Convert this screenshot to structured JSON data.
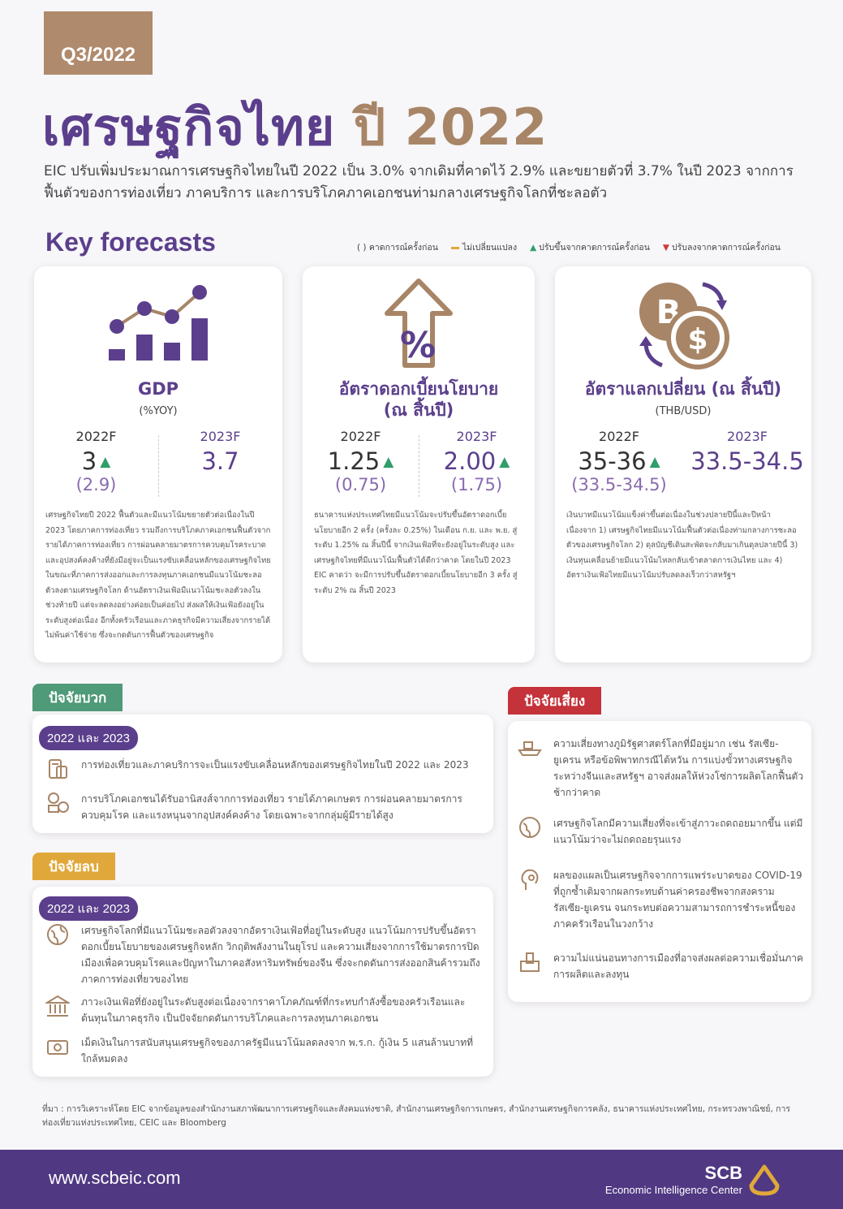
{
  "header": {
    "quarter": "Q3/2022",
    "title_main": "เศรษฐกิจไทย",
    "title_year": "ปี 2022",
    "subtitle": "EIC ปรับเพิ่มประมาณการเศรษฐกิจไทยในปี 2022 เป็น 3.0% จากเดิมที่คาดไว้ 2.9% และขยายตัวที่ 3.7% ในปี 2023 จากการฟื้นตัวของการท่องเที่ยว ภาคบริการ และการบริโภคภาคเอกชนท่ามกลางเศรษฐกิจโลกที่ชะลอตัว"
  },
  "key_forecasts": {
    "title": "Key forecasts",
    "legend": {
      "prev": "( ) คาดการณ์ครั้งก่อน",
      "unchanged": "ไม่เปลี่ยนแปลง",
      "up": "ปรับขึ้นจากคาดการณ์ครั้งก่อน",
      "down": "ปรับลงจากคาดการณ์ครั้งก่อน",
      "colors": {
        "unchanged": "#e0a83a",
        "up": "#2f9e6a",
        "down": "#d0383a"
      }
    },
    "cards": [
      {
        "icon": "bar-chart-icon",
        "title": "GDP",
        "unit": "(%YOY)",
        "y1": "2022F",
        "v1": "3",
        "p1": "(2.9)",
        "t1": "▲",
        "y2": "2023F",
        "v2": "3.7",
        "p2": "",
        "t2": "",
        "desc": "เศรษฐกิจไทยปี 2022 ฟื้นตัวและมีแนวโน้มขยายตัวต่อเนื่องในปี 2023 โดยภาคการท่องเที่ยว รวมถึงการบริโภคภาคเอกชนฟื้นตัวจากรายได้ภาคการท่องเที่ยว การผ่อนคลายมาตรการควบคุมโรคระบาด และอุปสงค์คงค้างที่ยังมีอยู่จะเป็นแรงขับเคลื่อนหลักของเศรษฐกิจไทย ในขณะที่ภาคการส่งออกและการลงทุนภาคเอกชนมีแนวโน้มชะลอตัวลงตามเศรษฐกิจโลก ด้านอัตราเงินเฟ้อมีแนวโน้มชะลอตัวลงในช่วงท้ายปี แต่จะลดลงอย่างค่อยเป็นค่อยไป ส่งผลให้เงินเฟ้อยังอยู่ในระดับสูงต่อเนื่อง อีกทั้งครัวเรือนและภาคธุรกิจมีความเสี่ยงจากรายได้ไม่พ้นค่าใช้จ่าย ซึ่งจะกดดันการฟื้นตัวของเศรษฐกิจ"
      },
      {
        "icon": "interest-rate-up-icon",
        "title": "อัตราดอกเบี้ยนโยบาย",
        "unit": "(ณ สิ้นปี)",
        "y1": "2022F",
        "v1": "1.25",
        "p1": "(0.75)",
        "t1": "▲",
        "y2": "2023F",
        "v2": "2.00",
        "p2": "(1.75)",
        "t2": "▲",
        "desc": "ธนาคารแห่งประเทศไทยมีแนวโน้มจะปรับขึ้นอัตราดอกเบี้ยนโยบายอีก 2 ครั้ง (ครั้งละ 0.25%) ในเดือน ก.ย. และ พ.ย. สู่ระดับ 1.25% ณ สิ้นปีนี้ จากเงินเฟ้อที่จะยังอยู่ในระดับสูง และเศรษฐกิจไทยที่มีแนวโน้มฟื้นตัวได้ดีกว่าคาด โดยในปี 2023 EIC คาดว่า จะมีการปรับขึ้นอัตราดอกเบี้ยนโยบายอีก 3 ครั้ง สู่ระดับ 2% ณ สิ้นปี 2023"
      },
      {
        "icon": "currency-exchange-icon",
        "title": "อัตราแลกเปลี่ยน (ณ สิ้นปี)",
        "unit": "(THB/USD)",
        "y1": "2022F",
        "v1": "35-36",
        "p1": "(33.5-34.5)",
        "t1": "▲",
        "y2": "2023F",
        "v2": "33.5-34.5",
        "p2": "",
        "t2": "",
        "desc": "เงินบาทมีแนวโน้มแข็งค่าขึ้นต่อเนื่องในช่วงปลายปีนี้และปีหน้าเนื่องจาก 1) เศรษฐกิจไทยมีแนวโน้มฟื้นตัวต่อเนื่องท่ามกลางการชะลอตัวของเศรษฐกิจโลก 2) ดุลบัญชีเดินสะพัดจะกลับมาเกินดุลปลายปีนี้ 3) เงินทุนเคลื่อนย้ายมีแนวโน้มไหลกลับเข้าตลาดการเงินไทย และ 4) อัตราเงินเฟ้อไทยมีแนวโน้มปรับลดลงเร็วกว่าสหรัฐฯ"
      }
    ]
  },
  "positive": {
    "tag": "ปัจจัยบวก",
    "period": "2022 และ 2023",
    "items": [
      {
        "icon": "tourism-icon",
        "text": "การท่องเที่ยวและภาคบริการจะเป็นแรงขับเคลื่อนหลักของเศรษฐกิจไทยในปี 2022 และ 2023"
      },
      {
        "icon": "consumption-icon",
        "text": "การบริโภคเอกชนได้รับอานิสงส์จากการท่องเที่ยว รายได้ภาคเกษตร การผ่อนคลายมาตรการควบคุมโรค และแรงหนุนจากอุปสงค์คงค้าง โดยเฉพาะจากกลุ่มผู้มีรายได้สูง"
      }
    ]
  },
  "negative": {
    "tag": "ปัจจัยลบ",
    "period": "2022 และ 2023",
    "items": [
      {
        "icon": "global-economy-icon",
        "text": "เศรษฐกิจโลกที่มีแนวโน้มชะลอตัวลงจากอัตราเงินเฟ้อที่อยู่ในระดับสูง แนวโน้มการปรับขึ้นอัตราดอกเบี้ยนโยบายของเศรษฐกิจหลัก วิกฤติพลังงานในยุโรป และความเสี่ยงจากการใช้มาตรการปิดเมืองเพื่อควบคุมโรคและปัญหาในภาคอสังหาริมทรัพย์ของจีน ซึ่งจะกดดันการส่งออกสินค้ารวมถึงภาคการท่องเที่ยวของไทย"
      },
      {
        "icon": "bank-icon",
        "text": "ภาวะเงินเฟ้อที่ยังอยู่ในระดับสูงต่อเนื่องจากราคาโภคภัณฑ์ที่กระทบกำลังซื้อของครัวเรือนและต้นทุนในภาคธุรกิจ เป็นปัจจัยกดดันการบริโภคและการลงทุนภาคเอกชน"
      },
      {
        "icon": "money-icon",
        "text": "เม็ดเงินในการสนับสนุนเศรษฐกิจของภาครัฐมีแนวโน้มลดลงจาก พ.ร.ก. กู้เงิน 5 แสนล้านบาทที่ใกล้หมดลง"
      }
    ]
  },
  "risk": {
    "tag": "ปัจจัยเสี่ยง",
    "items": [
      {
        "icon": "shipping-icon",
        "text": "ความเสี่ยงทางภูมิรัฐศาสตร์โลกที่มีอยู่มาก เช่น รัสเซีย-ยูเครน หรือข้อพิพาทกรณีไต้หวัน การแบ่งขั้วทางเศรษฐกิจระหว่างจีนและสหรัฐฯ อาจส่งผลให้ห่วงโซ่การผลิตโลกฟื้นตัวช้ากว่าคาด"
      },
      {
        "icon": "recession-globe-icon",
        "text": "เศรษฐกิจโลกมีความเสี่ยงที่จะเข้าสู่ภาวะถดถอยมากขึ้น แต่มีแนวโน้มว่าจะไม่ถดถอยรุนแรง"
      },
      {
        "icon": "covid-icon",
        "text": "ผลของแผลเป็นเศรษฐกิจจากการแพร่ระบาดของ COVID-19 ที่ถูกซ้ำเติมจากผลกระทบด้านค่าครองชีพจากสงครามรัสเซีย-ยูเครน จนกระทบต่อความสามารถการชำระหนี้ของภาคครัวเรือนในวงกว้าง"
      },
      {
        "icon": "politics-icon",
        "text": "ความไม่แน่นอนทางการเมืองที่อาจส่งผลต่อความเชื่อมั่นภาคการผลิตและลงทุน"
      }
    ]
  },
  "source": "ที่มา : การวิเคราะห์โดย EIC จากข้อมูลของสำนักงานสภาพัฒนาการเศรษฐกิจและสังคมแห่งชาติ, สำนักงานเศรษฐกิจการเกษตร, สำนักงานเศรษฐกิจการคลัง, ธนาคารแห่งประเทศไทย, กระทรวงพาณิชย์, การท่องเที่ยวแห่งประเทศไทย, CEIC และ Bloomberg",
  "footer": {
    "url": "www.scbeic.com",
    "brand": "SCB",
    "center": "Economic Intelligence Center"
  }
}
